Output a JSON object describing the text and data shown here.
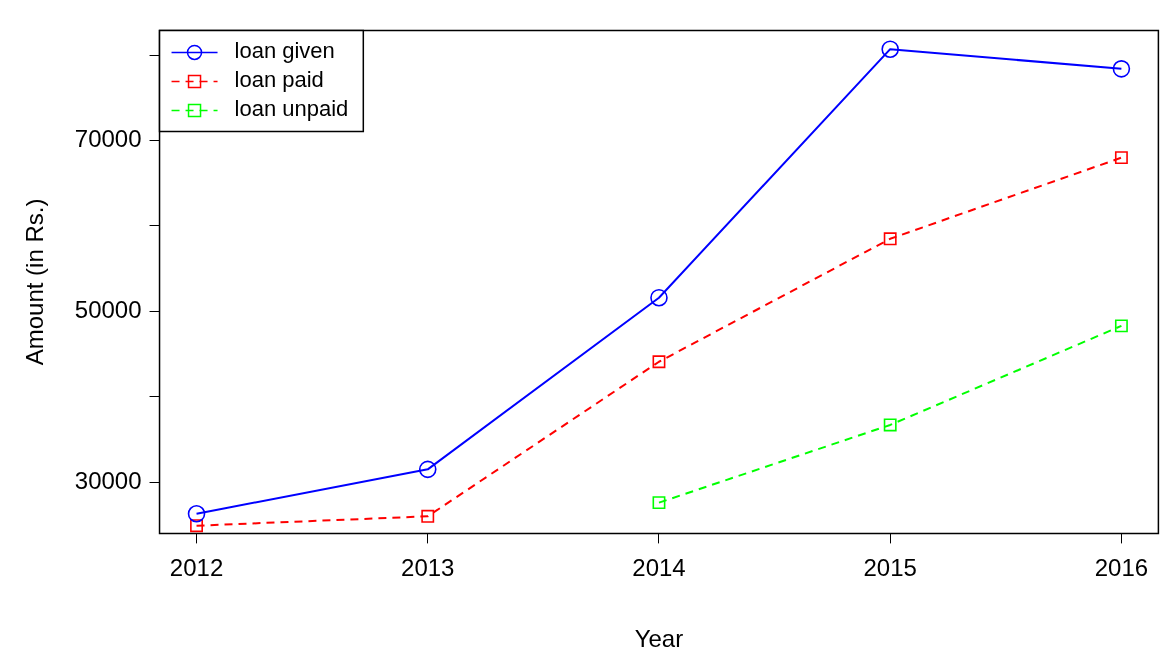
{
  "chart_data": {
    "type": "line",
    "xlabel": "Year",
    "ylabel": "Amount (in Rs.)",
    "x": [
      2012,
      2013,
      2014,
      2015,
      2016
    ],
    "xlim": [
      2011.84,
      2016.16
    ],
    "xticks": [
      2012,
      2013,
      2014,
      2015,
      2016
    ],
    "ylim": [
      24000,
      82900
    ],
    "yticks": [
      30000,
      {
        "value": 40000,
        "label": null
      },
      50000,
      {
        "value": 60000,
        "label": null
      },
      70000,
      {
        "value": 80000,
        "label": null
      }
    ],
    "grid": false,
    "legend": "top left",
    "series": [
      {
        "name": "loan given",
        "color": "#0000ff",
        "values": [
          26300,
          31500,
          51600,
          80700,
          78400
        ],
        "marker": "circle",
        "line_style": "solid"
      },
      {
        "name": "loan paid",
        "color": "#ff0000",
        "values": [
          24900,
          26000,
          44100,
          58500,
          68000
        ],
        "marker": "square",
        "line_style": "dashed"
      },
      {
        "name": "loan unpaid",
        "color": "#00ff00",
        "values": [
          null,
          null,
          27600,
          36700,
          48300
        ],
        "marker": "square",
        "line_style": "dashed"
      }
    ]
  }
}
